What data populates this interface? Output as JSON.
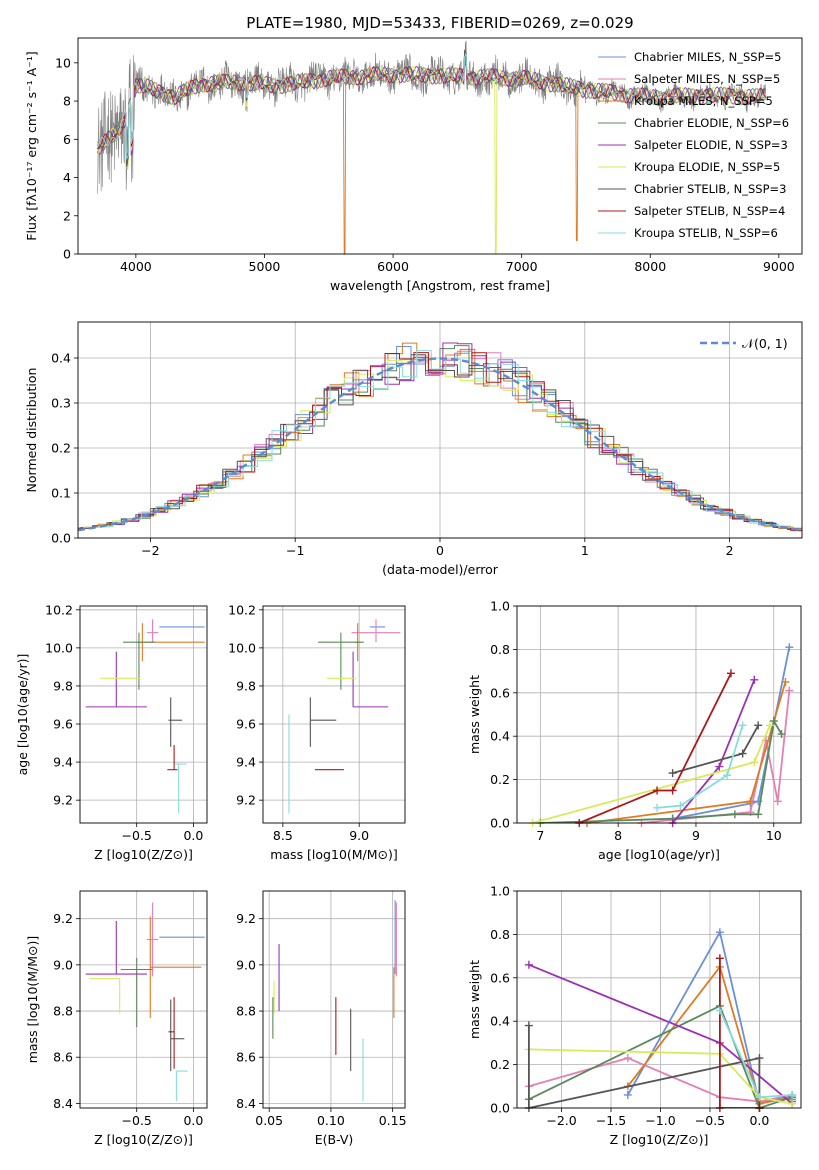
{
  "figure_title": "PLATE=1980, MJD=53433, FIBERID=0269, z=0.029",
  "series_colors": [
    "#6a8fdc",
    "#e57fb6",
    "#df7a22",
    "#5a8a5a",
    "#9b30b8",
    "#d8ea5a",
    "#555555",
    "#aa1a1a",
    "#86dddd"
  ],
  "chart_data": [
    {
      "id": "spectrum",
      "type": "line",
      "title": "PLATE=1980, MJD=53433, FIBERID=0269, z=0.029",
      "xlabel": "wavelength [Angstrom, rest frame]",
      "ylabel": "Flux [fλ10⁻¹⁷ erg cm⁻² s⁻¹ A⁻¹]",
      "xlim": [
        3550,
        9180
      ],
      "ylim": [
        0,
        11.3
      ],
      "xticks": [
        4000,
        5000,
        6000,
        7000,
        8000,
        9000
      ],
      "yticks": [
        0,
        2,
        4,
        6,
        8,
        10
      ],
      "legend_position": "upper right",
      "legend": [
        "Chabrier MILES, N_SSP=5",
        "Salpeter MILES, N_SSP=5",
        "Kroupa MILES, N_SSP=5",
        "Chabrier ELODIE, N_SSP=6",
        "Salpeter ELODIE, N_SSP=3",
        "Kroupa ELODIE, N_SSP=5",
        "Chabrier STELIB, N_SSP=3",
        "Salpeter STELIB, N_SSP=4",
        "Kroupa STELIB, N_SSP=6"
      ],
      "data_series": {
        "name": "data",
        "color": "#808080",
        "x_range": [
          3700,
          8900
        ]
      },
      "continuum_points": [
        [
          3700,
          5.5
        ],
        [
          3850,
          6.3
        ],
        [
          3920,
          7.2
        ],
        [
          4000,
          8.8
        ],
        [
          4100,
          8.7
        ],
        [
          4300,
          8.2
        ],
        [
          4500,
          8.9
        ],
        [
          4800,
          9.0
        ],
        [
          5100,
          8.8
        ],
        [
          5500,
          9.2
        ],
        [
          6000,
          9.4
        ],
        [
          6500,
          9.3
        ],
        [
          7000,
          9.2
        ],
        [
          7500,
          8.6
        ],
        [
          8000,
          8.2
        ],
        [
          8500,
          8.3
        ],
        [
          8900,
          8.2
        ]
      ],
      "model_dips": [
        {
          "series": "Kroupa MILES",
          "x": 5625,
          "y": 0
        },
        {
          "series": "Kroupa ELODIE",
          "x": 6800,
          "y": 0
        },
        {
          "series": "Kroupa MILES",
          "x": 7430,
          "y": 0.7
        }
      ]
    },
    {
      "id": "residuals",
      "type": "histogram",
      "xlabel": "(data-model)/error",
      "ylabel": "Normed distribution",
      "xlim": [
        -2.5,
        2.5
      ],
      "ylim": [
        0,
        0.48
      ],
      "xticks": [
        -2,
        -1,
        0,
        1,
        2
      ],
      "yticks": [
        0.0,
        0.1,
        0.2,
        0.3,
        0.4
      ],
      "grid": true,
      "legend": [
        "𝒩(0, 1)"
      ],
      "legend_position": "upper right",
      "bin_width": 0.1,
      "reference_curve": {
        "name": "𝒩(0, 1)",
        "mean": 0,
        "sigma": 1,
        "style": "dashed",
        "color": "#5b8bd6"
      }
    },
    {
      "id": "age-vs-z",
      "type": "errorbar",
      "xlabel": "Z [log10(Z/Z⊙)]",
      "ylabel": "age  [log10(age/yr)]",
      "xlim": [
        -1.0,
        0.12
      ],
      "ylim": [
        9.08,
        10.22
      ],
      "xticks": [
        -0.5,
        0.0
      ],
      "yticks": [
        9.2,
        9.4,
        9.6,
        9.8,
        10.0,
        10.2
      ],
      "points": [
        {
          "x": -0.05,
          "y": 10.11,
          "xerr": [
            0.25,
            0.15
          ],
          "yerr": [
            0.0,
            0.0
          ]
        },
        {
          "x": -0.36,
          "y": 10.08,
          "xerr": [
            0.05,
            0.05
          ],
          "yerr": [
            0.05,
            0.07
          ]
        },
        {
          "x": -0.45,
          "y": 10.03,
          "xerr": [
            0.05,
            0.55
          ],
          "yerr": [
            0.1,
            0.1
          ]
        },
        {
          "x": -0.48,
          "y": 10.03,
          "xerr": [
            0.14,
            0.14
          ],
          "yerr": [
            0.25,
            0.05
          ]
        },
        {
          "x": -0.68,
          "y": 9.69,
          "xerr": [
            0.27,
            0.27
          ],
          "yerr": [
            0.0,
            0.29
          ]
        },
        {
          "x": -0.55,
          "y": 9.84,
          "xerr": [
            0.27,
            0.08
          ],
          "yerr": [
            0.0,
            0.0
          ]
        },
        {
          "x": -0.2,
          "y": 9.62,
          "xerr": [
            0.02,
            0.1
          ],
          "yerr": [
            0.14,
            0.12
          ]
        },
        {
          "x": -0.17,
          "y": 9.36,
          "xerr": [
            0.06,
            0.03
          ],
          "yerr": [
            0.0,
            0.13
          ]
        },
        {
          "x": -0.13,
          "y": 9.39,
          "xerr": [
            0.03,
            0.07
          ],
          "yerr": [
            0.26,
            0.0
          ]
        }
      ]
    },
    {
      "id": "age-vs-mass",
      "type": "errorbar",
      "xlabel": "mass [log10(M/M⊙)]",
      "ylabel": "",
      "xlim": [
        8.37,
        9.3
      ],
      "ylim": [
        9.08,
        10.22
      ],
      "xticks": [
        8.5,
        9.0
      ],
      "yticks": [
        9.2,
        9.4,
        9.6,
        9.8,
        10.0,
        10.2
      ],
      "points": [
        {
          "x": 9.12,
          "y": 10.11,
          "xerr": [
            0.05,
            0.05
          ],
          "yerr": [
            0.0,
            0.0
          ]
        },
        {
          "x": 9.11,
          "y": 10.08,
          "xerr": [
            0.16,
            0.16
          ],
          "yerr": [
            0.05,
            0.07
          ]
        },
        {
          "x": 8.99,
          "y": 10.03,
          "xerr": [
            0.02,
            0.02
          ],
          "yerr": [
            0.1,
            0.1
          ]
        },
        {
          "x": 8.88,
          "y": 10.03,
          "xerr": [
            0.15,
            0.15
          ],
          "yerr": [
            0.25,
            0.05
          ]
        },
        {
          "x": 8.96,
          "y": 9.69,
          "xerr": [
            0.0,
            0.23
          ],
          "yerr": [
            0.0,
            0.29
          ]
        },
        {
          "x": 8.94,
          "y": 9.84,
          "xerr": [
            0.15,
            0.04
          ],
          "yerr": [
            0.0,
            0.0
          ]
        },
        {
          "x": 8.68,
          "y": 9.62,
          "xerr": [
            0.0,
            0.17
          ],
          "yerr": [
            0.14,
            0.12
          ]
        },
        {
          "x": 8.71,
          "y": 9.36,
          "xerr": [
            0.0,
            0.19
          ],
          "yerr": [
            0.0,
            0.0
          ]
        },
        {
          "x": 8.54,
          "y": 9.39,
          "xerr": [
            0.0,
            0.0
          ],
          "yerr": [
            0.26,
            0.26
          ]
        }
      ]
    },
    {
      "id": "mass-vs-z",
      "type": "errorbar",
      "xlabel": "Z [log10(Z/Z⊙)]",
      "ylabel": "mass [log10(M/M⊙)]",
      "xlim": [
        -1.0,
        0.12
      ],
      "ylim": [
        8.38,
        9.32
      ],
      "xticks": [
        -0.5,
        0.0
      ],
      "yticks": [
        8.4,
        8.6,
        8.8,
        9.0,
        9.2
      ],
      "points": [
        {
          "x": -0.1,
          "y": 9.12,
          "xerr": [
            0.2,
            0.2
          ],
          "yerr": [
            0.0,
            0.0
          ]
        },
        {
          "x": -0.36,
          "y": 9.11,
          "xerr": [
            0.05,
            0.05
          ],
          "yerr": [
            0.16,
            0.16
          ]
        },
        {
          "x": -0.38,
          "y": 8.99,
          "xerr": [
            0.0,
            0.45
          ],
          "yerr": [
            0.22,
            0.22
          ]
        },
        {
          "x": -0.5,
          "y": 8.98,
          "xerr": [
            0.14,
            0.14
          ],
          "yerr": [
            0.25,
            0.05
          ]
        },
        {
          "x": -0.68,
          "y": 8.96,
          "xerr": [
            0.27,
            0.27
          ],
          "yerr": [
            0.0,
            0.23
          ]
        },
        {
          "x": -0.65,
          "y": 8.94,
          "xerr": [
            0.27,
            0.0
          ],
          "yerr": [
            0.15,
            0.0
          ]
        },
        {
          "x": -0.2,
          "y": 8.68,
          "xerr": [
            0.0,
            0.12
          ],
          "yerr": [
            0.14,
            0.17
          ]
        },
        {
          "x": -0.17,
          "y": 8.71,
          "xerr": [
            0.05,
            0.0
          ],
          "yerr": [
            0.16,
            0.15
          ]
        },
        {
          "x": -0.15,
          "y": 8.54,
          "xerr": [
            0.0,
            0.1
          ],
          "yerr": [
            0.13,
            0.0
          ]
        }
      ]
    },
    {
      "id": "mass-vs-ebv",
      "type": "errorbar",
      "xlabel": "E(B-V)",
      "ylabel": "",
      "xlim": [
        0.045,
        0.16
      ],
      "ylim": [
        8.38,
        9.32
      ],
      "xticks": [
        0.05,
        0.1,
        0.15
      ],
      "yticks": [
        8.4,
        8.6,
        8.8,
        9.0,
        9.2
      ],
      "points": [
        {
          "x": 0.152,
          "y": 9.12,
          "xerr": [
            0.0,
            0.0
          ],
          "yerr": [
            0.16,
            0.16
          ]
        },
        {
          "x": 0.153,
          "y": 9.11,
          "xerr": [
            0.0,
            0.0
          ],
          "yerr": [
            0.16,
            0.16
          ]
        },
        {
          "x": 0.151,
          "y": 8.99,
          "xerr": [
            0.0,
            0.0
          ],
          "yerr": [
            0.22,
            0.0
          ]
        },
        {
          "x": 0.053,
          "y": 8.86,
          "xerr": [
            0.0,
            0.0
          ],
          "yerr": [
            0.18,
            0.0
          ]
        },
        {
          "x": 0.058,
          "y": 9.0,
          "xerr": [
            0.0,
            0.0
          ],
          "yerr": [
            0.2,
            0.09
          ]
        },
        {
          "x": 0.054,
          "y": 8.93,
          "xerr": [
            0.0,
            0.0
          ],
          "yerr": [
            0.14,
            0.0
          ]
        },
        {
          "x": 0.116,
          "y": 8.68,
          "xerr": [
            0.0,
            0.0
          ],
          "yerr": [
            0.14,
            0.13
          ]
        },
        {
          "x": 0.104,
          "y": 8.74,
          "xerr": [
            0.0,
            0.0
          ],
          "yerr": [
            0.13,
            0.12
          ]
        },
        {
          "x": 0.126,
          "y": 8.54,
          "xerr": [
            0.0,
            0.0
          ],
          "yerr": [
            0.13,
            0.14
          ]
        }
      ]
    },
    {
      "id": "mass-weight-vs-age",
      "type": "line",
      "xlabel": "age  [log10(age/yr)]",
      "ylabel": "mass weight",
      "xlim": [
        6.7,
        10.35
      ],
      "ylim": [
        0,
        1
      ],
      "xticks": [
        7,
        8,
        9,
        10
      ],
      "yticks": [
        0.0,
        0.2,
        0.4,
        0.6,
        0.8,
        1.0
      ],
      "grid": true,
      "marker": "+",
      "series": [
        {
          "points": [
            [
              8.7,
              0.02
            ],
            [
              9.7,
              0.09
            ],
            [
              9.8,
              0.1
            ],
            [
              10.2,
              0.81
            ]
          ]
        },
        {
          "points": [
            [
              8.3,
              0.0
            ],
            [
              9.7,
              0.05
            ],
            [
              9.9,
              0.38
            ],
            [
              10.05,
              0.1
            ],
            [
              10.2,
              0.61
            ]
          ]
        },
        {
          "points": [
            [
              7.6,
              0.0
            ],
            [
              9.7,
              0.1
            ],
            [
              10.15,
              0.65
            ]
          ]
        },
        {
          "points": [
            [
              7.0,
              0.0
            ],
            [
              8.7,
              0.02
            ],
            [
              9.5,
              0.04
            ],
            [
              9.8,
              0.04
            ],
            [
              10.0,
              0.47
            ],
            [
              10.1,
              0.41
            ]
          ]
        },
        {
          "points": [
            [
              8.7,
              0.0
            ],
            [
              9.3,
              0.26
            ],
            [
              9.75,
              0.66
            ]
          ]
        },
        {
          "points": [
            [
              6.9,
              0.0
            ],
            [
              9.75,
              0.28
            ],
            [
              9.95,
              0.45
            ]
          ]
        },
        {
          "points": [
            [
              8.7,
              0.23
            ],
            [
              9.6,
              0.32
            ],
            [
              9.8,
              0.45
            ]
          ]
        },
        {
          "points": [
            [
              7.5,
              0.0
            ],
            [
              8.5,
              0.15
            ],
            [
              8.7,
              0.15
            ],
            [
              9.45,
              0.69
            ]
          ]
        },
        {
          "points": [
            [
              8.5,
              0.07
            ],
            [
              8.8,
              0.08
            ],
            [
              9.4,
              0.22
            ],
            [
              9.6,
              0.45
            ]
          ]
        }
      ]
    },
    {
      "id": "mass-weight-vs-z",
      "type": "line",
      "xlabel": "Z [log10(Z/Z⊙)]",
      "ylabel": "mass weight",
      "xlim": [
        -2.45,
        0.42
      ],
      "ylim": [
        0,
        1
      ],
      "xticks": [
        -2.0,
        -1.5,
        -1.0,
        -0.5,
        0.0
      ],
      "yticks": [
        0.0,
        0.2,
        0.4,
        0.6,
        0.8,
        1.0
      ],
      "grid": true,
      "marker": "+",
      "series": [
        {
          "points": [
            [
              -1.33,
              0.06
            ],
            [
              -0.4,
              0.81
            ],
            [
              0.0,
              0.02
            ],
            [
              0.33,
              0.06
            ],
            [
              0.33,
              0.04
            ]
          ]
        },
        {
          "points": [
            [
              -2.33,
              0.1
            ],
            [
              -1.33,
              0.23
            ],
            [
              -0.4,
              0.05
            ],
            [
              0.0,
              0.03
            ],
            [
              0.33,
              0.06
            ]
          ]
        },
        {
          "points": [
            [
              -1.33,
              0.1
            ],
            [
              -0.4,
              0.65
            ],
            [
              0.0,
              0.02
            ],
            [
              0.33,
              0.05
            ]
          ]
        },
        {
          "points": [
            [
              -2.33,
              0.04
            ],
            [
              -0.4,
              0.47
            ],
            [
              0.0,
              0.0
            ],
            [
              0.33,
              0.05
            ],
            [
              0.33,
              0.03
            ]
          ]
        },
        {
          "points": [
            [
              -2.33,
              0.66
            ],
            [
              -0.4,
              0.3
            ],
            [
              0.33,
              0.02
            ]
          ]
        },
        {
          "points": [
            [
              -2.33,
              0.27
            ],
            [
              -0.4,
              0.25
            ],
            [
              0.0,
              0.05
            ],
            [
              0.33,
              0.02
            ]
          ]
        },
        {
          "points": [
            [
              -2.33,
              0.38
            ],
            [
              -2.33,
              0.0
            ],
            [
              0.0,
              0.23
            ],
            [
              0.0,
              0.0
            ]
          ]
        },
        {
          "points": [
            [
              -0.4,
              0.69
            ],
            [
              -0.4,
              0.0
            ],
            [
              0.0,
              0.0
            ]
          ]
        },
        {
          "points": [
            [
              -0.4,
              0.45
            ],
            [
              0.0,
              0.05
            ],
            [
              0.33,
              0.06
            ]
          ]
        }
      ]
    }
  ]
}
